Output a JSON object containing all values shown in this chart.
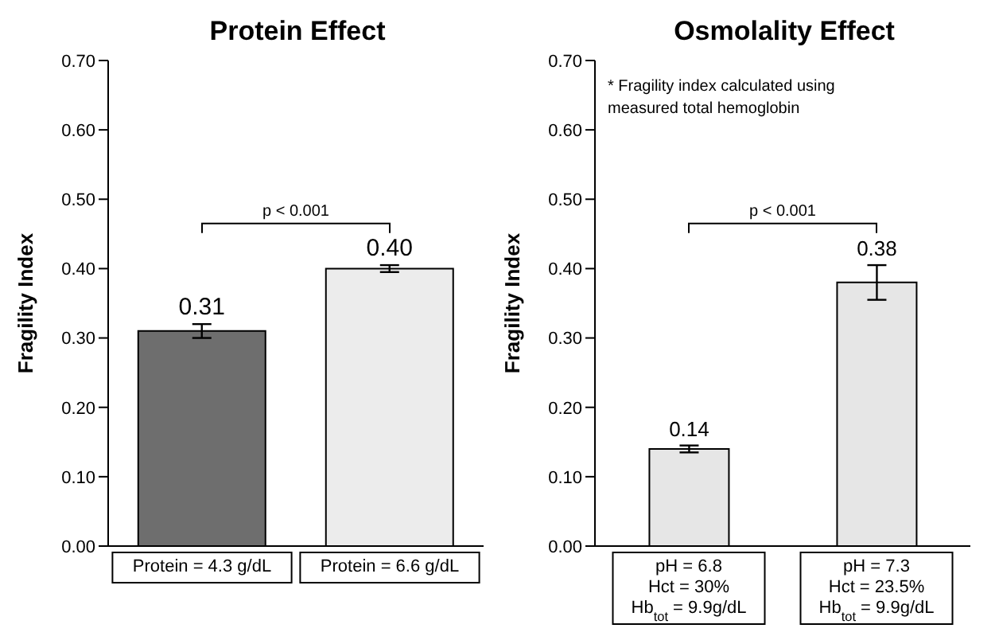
{
  "chart_data": [
    {
      "type": "bar",
      "title": "Protein Effect",
      "ylabel": "Fragility Index",
      "categories": [
        "Protein = 4.3 g/dL",
        "Protein = 6.6 g/dL"
      ],
      "values": [
        0.31,
        0.4
      ],
      "errors": [
        0.01,
        0.005
      ],
      "colors": [
        "#6e6e6e",
        "#ececec"
      ],
      "ylim": [
        0,
        0.7
      ],
      "yticks": [
        {
          "value": 0,
          "label": "0.00"
        },
        {
          "value": 0.1,
          "label": "0.10"
        },
        {
          "value": 0.2,
          "label": "0.20"
        },
        {
          "value": 0.3,
          "label": "0.30"
        },
        {
          "value": 0.4,
          "label": "0.40"
        },
        {
          "value": 0.5,
          "label": "0.50"
        },
        {
          "value": 0.6,
          "label": "0.60"
        },
        {
          "value": 0.7,
          "label": "0.70"
        }
      ],
      "value_labels": [
        "0.31",
        "0.40"
      ],
      "grid": false,
      "legend": false,
      "annotations": [
        "p < 0.001"
      ]
    },
    {
      "type": "bar",
      "title": "Osmolality Effect",
      "ylabel": "Fragility Index",
      "categories": [
        "pH = 6.8\nHct = 30%\nHb$_{tot}$ = 9.9g/dL",
        "pH = 7.3\nHct = 23.5%\nHb$_{tot}$ = 9.9g/dL"
      ],
      "values": [
        0.14,
        0.38
      ],
      "errors": [
        0.005,
        0.025
      ],
      "colors": [
        "#e6e6e6",
        "#e6e6e6"
      ],
      "ylim": [
        0,
        0.7
      ],
      "yticks": [
        {
          "value": 0,
          "label": "0.00"
        },
        {
          "value": 0.1,
          "label": "0.10"
        },
        {
          "value": 0.2,
          "label": "0.20"
        },
        {
          "value": 0.3,
          "label": "0.30"
        },
        {
          "value": 0.4,
          "label": "0.40"
        },
        {
          "value": 0.5,
          "label": "0.50"
        },
        {
          "value": 0.6,
          "label": "0.60"
        },
        {
          "value": 0.7,
          "label": "0.70"
        }
      ],
      "value_labels": [
        "0.14",
        "0.38"
      ],
      "grid": false,
      "legend": false,
      "annotations": [
        "p < 0.001",
        "* Fragility index calculated using measured total hemoglobin"
      ]
    }
  ]
}
